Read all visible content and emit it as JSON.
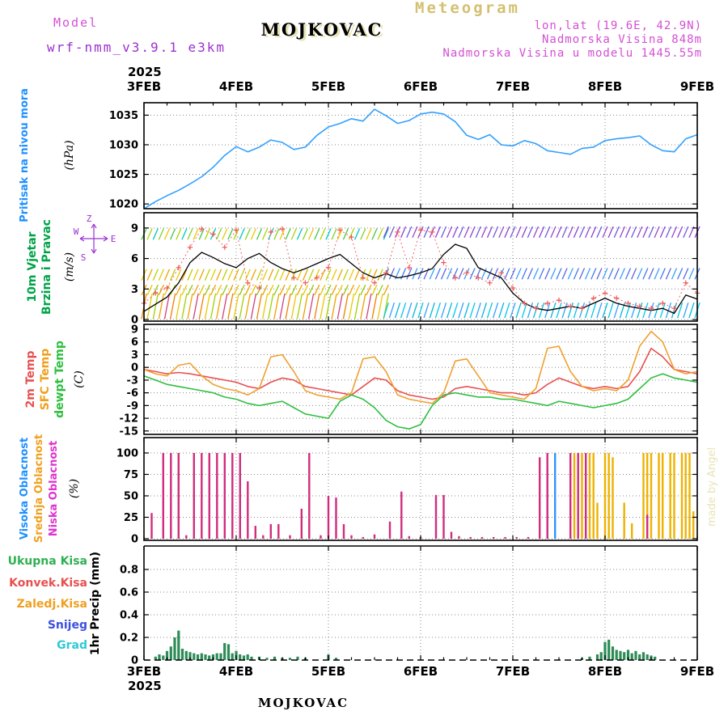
{
  "header": {
    "meteogram": "Meteogram",
    "model_label": "Model",
    "model_value": "wrf-nmm_v3.9.1 e3km",
    "title": "MOJKOVAC",
    "lonlat": "lon,lat (19.6E, 42.9N)",
    "elevation": "Nadmorska Visina 848m",
    "model_elevation": "Nadmorska Visina u modelu 1445.55m"
  },
  "watermark": "made by Angel",
  "footer": {
    "station": "MOJKOVAC",
    "year": "2025"
  },
  "x_axis": {
    "year": "2025",
    "day_labels": [
      "3FEB",
      "4FEB",
      "5FEB",
      "6FEB",
      "7FEB",
      "8FEB",
      "9FEB"
    ],
    "hours_total": 144
  },
  "panels": {
    "pressure": {
      "label": "Pritisak na nivou mora",
      "unit": "(hPa)",
      "ticks": [
        1020,
        1025,
        1030,
        1035
      ]
    },
    "wind": {
      "label_1": "10m Vjetar",
      "label_2": "Brzina i Pravac",
      "unit": "(m/s)",
      "ticks": [
        0,
        3,
        6,
        9
      ],
      "compass": {
        "top": "Z",
        "right": "E",
        "left": "W",
        "bottom": "S"
      }
    },
    "temp": {
      "label_2m": "2m Temp",
      "label_sfc": "SFC Temp",
      "label_dew": "dewpt Temp",
      "unit": "(C)",
      "ticks": [
        9,
        6,
        3,
        0,
        -3,
        -6,
        -9,
        -12,
        -15
      ]
    },
    "cloud": {
      "label_visoka": "Visoka Oblacnost",
      "label_srednja": "Srednja Oblacnost",
      "label_niska": "Niska Oblacnost",
      "unit": "(%)",
      "ticks": [
        0,
        25,
        50,
        75,
        100
      ]
    },
    "precip": {
      "unit": "1hr Precip (mm)",
      "ticks": [
        0,
        0.2,
        0.4,
        0.6,
        0.8
      ],
      "legend": [
        {
          "label": "Ukupna Kisa",
          "color": "#2eb050"
        },
        {
          "label": "Konvek.Kisa",
          "color": "#e85050"
        },
        {
          "label": "Zaledj.Kisa",
          "color": "#f0a020"
        },
        {
          "label": "Snijeg",
          "color": "#3c50e0"
        },
        {
          "label": "Grad",
          "color": "#2fc8d8"
        }
      ]
    }
  },
  "chart_data": [
    {
      "type": "line",
      "panel": "pressure",
      "title": "Pritisak na nivou mora",
      "ylabel": "hPa",
      "ylim": [
        1019.2,
        1037.1
      ],
      "x_step_hours": 3,
      "series": [
        {
          "name": "pritisak",
          "color": "#33a0ff",
          "values": [
            1019.2,
            1020.4,
            1021.4,
            1022.3,
            1023.4,
            1024.6,
            1026.2,
            1028.2,
            1029.7,
            1028.8,
            1029.6,
            1030.8,
            1030.4,
            1029.2,
            1029.6,
            1031.6,
            1033.0,
            1033.6,
            1034.4,
            1034.0,
            1036.0,
            1034.9,
            1033.6,
            1034.1,
            1035.2,
            1035.5,
            1035.2,
            1033.9,
            1031.6,
            1030.9,
            1031.7,
            1030.0,
            1029.8,
            1030.7,
            1030.2,
            1029.0,
            1028.7,
            1028.4,
            1029.4,
            1029.6,
            1030.7,
            1031.0,
            1031.2,
            1031.5,
            1030.0,
            1029.0,
            1028.8,
            1031.0,
            1031.7
          ]
        }
      ]
    },
    {
      "type": "line",
      "panel": "wind",
      "title": "10m Vjetar Brzina i Pravac",
      "ylabel": "m/s",
      "ylim": [
        0,
        9.9
      ],
      "x_step_hours": 3,
      "series": [
        {
          "name": "brzina",
          "color": "#000000",
          "values": [
            0.8,
            1.5,
            2.2,
            3.6,
            5.6,
            6.6,
            6.1,
            5.5,
            5.1,
            6.0,
            6.5,
            5.6,
            5.0,
            4.6,
            5.0,
            5.5,
            6.0,
            6.4,
            5.5,
            4.6,
            4.1,
            4.5,
            4.1,
            4.3,
            4.6,
            5.0,
            6.4,
            7.4,
            7.0,
            5.1,
            4.6,
            4.1,
            2.6,
            1.6,
            1.1,
            0.9,
            1.1,
            1.3,
            1.1,
            1.6,
            2.1,
            1.6,
            1.3,
            1.1,
            0.9,
            1.1,
            0.6,
            2.4,
            2.0
          ]
        },
        {
          "name": "udari",
          "color": "#f05858",
          "marker": "plus",
          "values": [
            1.6,
            2.6,
            3.1,
            5.1,
            7.1,
            8.9,
            8.4,
            7.1,
            8.8,
            3.6,
            3.1,
            8.6,
            8.9,
            4.1,
            3.6,
            4.1,
            5.1,
            8.8,
            8.1,
            4.1,
            3.6,
            4.6,
            8.6,
            5.1,
            8.8,
            8.6,
            5.6,
            4.1,
            4.6,
            4.1,
            3.6,
            4.6,
            3.1,
            1.6,
            1.1,
            1.6,
            1.9,
            1.3,
            1.1,
            2.1,
            2.6,
            2.1,
            1.6,
            1.3,
            1.1,
            1.6,
            1.1,
            3.6,
            2.6
          ]
        }
      ],
      "barbs": [
        {
          "from": 0,
          "to": 63,
          "y": 8.4,
          "len": 1.1,
          "colors": [
            "#44c444",
            "#a8d400",
            "#00c4c4",
            "#7ed321",
            "#e8c800"
          ]
        },
        {
          "from": 63,
          "to": 144,
          "y": 8.6,
          "len": 1.1,
          "colors": [
            "#8a3fd6",
            "#6a5ae0",
            "#9a44cc"
          ]
        },
        {
          "from": 0,
          "to": 63,
          "y": 4.4,
          "len": 1.1,
          "colors": [
            "#e8c800",
            "#f0a000",
            "#b8d000"
          ]
        },
        {
          "from": 63,
          "to": 144,
          "y": 4.5,
          "len": 1.1,
          "colors": [
            "#4477ee",
            "#5a66e0",
            "#33a0ff"
          ]
        },
        {
          "from": 0,
          "to": 63,
          "y": 2.9,
          "len": 1.0,
          "colors": [
            "#f0a000",
            "#e8c800",
            "#90cc00"
          ]
        },
        {
          "from": 0,
          "to": 63,
          "y": 1.3,
          "len": 2.5,
          "colors": [
            "#f08000",
            "#e8c800",
            "#a0d000",
            "#f0a000",
            "#d04080"
          ]
        },
        {
          "from": 63,
          "to": 144,
          "y": 0.9,
          "len": 1.5,
          "colors": [
            "#00c8e8",
            "#33a0ff",
            "#00b8d8"
          ]
        }
      ]
    },
    {
      "type": "line",
      "panel": "temp",
      "title": "2m / SFC / dewpt Temp",
      "ylabel": "C",
      "ylim": [
        -15,
        9
      ],
      "x_step_hours": 3,
      "series": [
        {
          "name": "2m Temp",
          "color": "#e85050",
          "values": [
            -0.5,
            -1.0,
            -1.5,
            -1.2,
            -1.5,
            -2.0,
            -2.5,
            -3.0,
            -3.5,
            -4.5,
            -5.0,
            -3.5,
            -2.5,
            -3.0,
            -4.5,
            -5.0,
            -5.5,
            -6.0,
            -6.5,
            -4.5,
            -2.5,
            -3.0,
            -5.5,
            -6.5,
            -7.0,
            -7.5,
            -7.0,
            -5.0,
            -4.5,
            -5.0,
            -5.5,
            -6.0,
            -6.0,
            -6.5,
            -6.0,
            -4.0,
            -2.5,
            -3.5,
            -4.5,
            -5.0,
            -4.5,
            -5.0,
            -4.5,
            -1.0,
            4.5,
            2.5,
            -0.5,
            -1.0,
            -1.5
          ]
        },
        {
          "name": "SFC Temp",
          "color": "#f0a030",
          "values": [
            -0.5,
            -1.5,
            -2.0,
            0.5,
            1.0,
            -2.0,
            -4.0,
            -5.0,
            -5.5,
            -6.5,
            -5.0,
            2.5,
            3.0,
            -1.0,
            -5.5,
            -6.5,
            -7.0,
            -7.5,
            -6.0,
            2.0,
            2.5,
            -1.0,
            -6.5,
            -7.5,
            -8.0,
            -8.5,
            -6.0,
            1.5,
            2.0,
            -2.0,
            -6.0,
            -6.5,
            -7.0,
            -7.5,
            -5.0,
            4.5,
            5.0,
            -1.0,
            -4.5,
            -5.5,
            -5.0,
            -5.5,
            -3.0,
            5.0,
            8.5,
            6.0,
            -0.5,
            -1.5,
            -1.0
          ]
        },
        {
          "name": "dewpt Temp",
          "color": "#2fbf3f",
          "values": [
            -2.0,
            -3.0,
            -4.0,
            -4.5,
            -5.0,
            -5.5,
            -6.0,
            -7.0,
            -7.5,
            -8.5,
            -9.0,
            -8.5,
            -8.0,
            -9.5,
            -11.0,
            -11.5,
            -12.0,
            -8.0,
            -6.5,
            -7.5,
            -9.5,
            -12.5,
            -14.0,
            -14.5,
            -13.5,
            -9.0,
            -6.5,
            -6.0,
            -6.5,
            -7.0,
            -7.0,
            -7.5,
            -7.5,
            -8.0,
            -8.5,
            -9.0,
            -8.0,
            -8.5,
            -9.0,
            -9.5,
            -9.0,
            -8.5,
            -7.5,
            -5.0,
            -2.5,
            -1.5,
            -2.5,
            -3.0,
            -3.5
          ]
        }
      ]
    },
    {
      "type": "bar",
      "panel": "cloud",
      "title": "Oblacnost",
      "ylabel": "%",
      "ylim": [
        0,
        100
      ],
      "series": [
        {
          "name": "Visoka Oblacnost",
          "color": "#2f95ff",
          "bars": [
            [
              105,
              82
            ],
            [
              107,
              100
            ]
          ]
        },
        {
          "name": "Srednja Oblacnost",
          "color": "#eeb200",
          "bars": [
            [
              9,
              100
            ],
            [
              112,
              100
            ],
            [
              113,
              100
            ],
            [
              114,
              100
            ],
            [
              116,
              100
            ],
            [
              117,
              100
            ],
            [
              118,
              42
            ],
            [
              120,
              100
            ],
            [
              121,
              100
            ],
            [
              122,
              95
            ],
            [
              125,
              42
            ],
            [
              127,
              18
            ],
            [
              130,
              100
            ],
            [
              131,
              100
            ],
            [
              132,
              100
            ],
            [
              134,
              100
            ],
            [
              135,
              100
            ],
            [
              137,
              100
            ],
            [
              138,
              100
            ],
            [
              140,
              100
            ],
            [
              141,
              100
            ],
            [
              142,
              100
            ],
            [
              143,
              32
            ]
          ]
        },
        {
          "name": "Niska Oblacnost",
          "color": "#d12c7d",
          "bars": [
            [
              2,
              30
            ],
            [
              5,
              100
            ],
            [
              7,
              100
            ],
            [
              9,
              100
            ],
            [
              11,
              4
            ],
            [
              13,
              100
            ],
            [
              15,
              100
            ],
            [
              17,
              100
            ],
            [
              19,
              100
            ],
            [
              21,
              100
            ],
            [
              23,
              100
            ],
            [
              25,
              100
            ],
            [
              27,
              67
            ],
            [
              29,
              15
            ],
            [
              31,
              4
            ],
            [
              33,
              17
            ],
            [
              35,
              17
            ],
            [
              38,
              4
            ],
            [
              41,
              35
            ],
            [
              43,
              100
            ],
            [
              46,
              4
            ],
            [
              48,
              50
            ],
            [
              50,
              48
            ],
            [
              52,
              17
            ],
            [
              54,
              4
            ],
            [
              57,
              2
            ],
            [
              60,
              5
            ],
            [
              64,
              20
            ],
            [
              67,
              55
            ],
            [
              69,
              3
            ],
            [
              72,
              2
            ],
            [
              76,
              51
            ],
            [
              78,
              51
            ],
            [
              80,
              8
            ],
            [
              82,
              3
            ],
            [
              85,
              2
            ],
            [
              88,
              2
            ],
            [
              91,
              2
            ],
            [
              94,
              2
            ],
            [
              97,
              2
            ],
            [
              100,
              2
            ],
            [
              103,
              95
            ],
            [
              105,
              100
            ],
            [
              111,
              100
            ],
            [
              113,
              100
            ],
            [
              115,
              100
            ],
            [
              131,
              28
            ]
          ]
        }
      ]
    },
    {
      "type": "bar",
      "panel": "precip",
      "title": "1hr Precip",
      "ylabel": "mm",
      "ylim": [
        0,
        0.9
      ],
      "series": [
        {
          "name": "Ukupna Kisa",
          "color": "#2e8b57",
          "bars": [
            [
              3,
              0.03
            ],
            [
              4,
              0.05
            ],
            [
              5,
              0.04
            ],
            [
              6,
              0.08
            ],
            [
              7,
              0.12
            ],
            [
              8,
              0.2
            ],
            [
              9,
              0.26
            ],
            [
              10,
              0.1
            ],
            [
              11,
              0.08
            ],
            [
              12,
              0.07
            ],
            [
              13,
              0.06
            ],
            [
              14,
              0.05
            ],
            [
              15,
              0.06
            ],
            [
              16,
              0.05
            ],
            [
              17,
              0.04
            ],
            [
              18,
              0.05
            ],
            [
              19,
              0.06
            ],
            [
              20,
              0.06
            ],
            [
              21,
              0.15
            ],
            [
              22,
              0.14
            ],
            [
              23,
              0.06
            ],
            [
              24,
              0.08
            ],
            [
              25,
              0.05
            ],
            [
              26,
              0.04
            ],
            [
              27,
              0.05
            ],
            [
              28,
              0.03
            ],
            [
              30,
              0.03
            ],
            [
              32,
              0.02
            ],
            [
              34,
              0.03
            ],
            [
              36,
              0.02
            ],
            [
              38,
              0.02
            ],
            [
              40,
              0.03
            ],
            [
              42,
              0.02
            ],
            [
              48,
              0.05
            ],
            [
              50,
              0.02
            ],
            [
              114,
              0.02
            ],
            [
              116,
              0.03
            ],
            [
              118,
              0.05
            ],
            [
              119,
              0.07
            ],
            [
              120,
              0.16
            ],
            [
              121,
              0.18
            ],
            [
              122,
              0.12
            ],
            [
              123,
              0.09
            ],
            [
              124,
              0.08
            ],
            [
              125,
              0.07
            ],
            [
              126,
              0.09
            ],
            [
              127,
              0.06
            ],
            [
              128,
              0.08
            ],
            [
              129,
              0.05
            ],
            [
              130,
              0.07
            ],
            [
              131,
              0.05
            ],
            [
              132,
              0.04
            ],
            [
              133,
              0.03
            ]
          ]
        }
      ]
    }
  ]
}
